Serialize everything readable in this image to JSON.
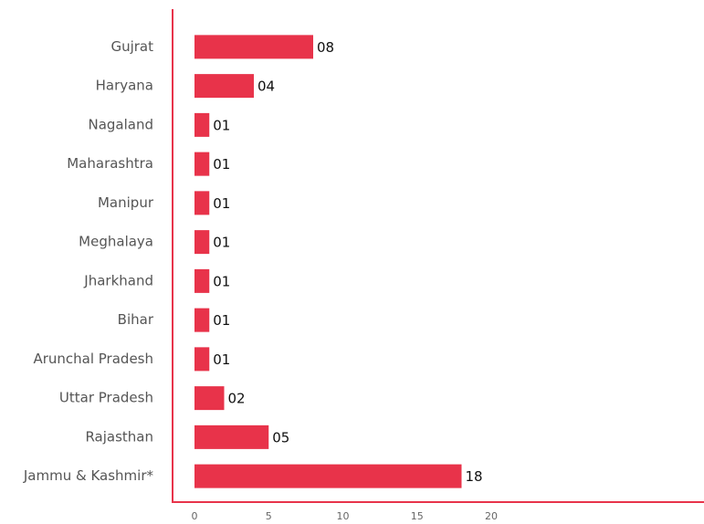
{
  "chart_data": {
    "type": "barh",
    "categories": [
      "Gujrat",
      "Haryana",
      "Nagaland",
      "Maharashtra",
      "Manipur",
      "Meghalaya",
      "Jharkhand",
      "Bihar",
      "Arunchal Pradesh",
      "Uttar Pradesh",
      "Rajasthan",
      "Jammu & Kashmir*"
    ],
    "values": [
      8,
      4,
      1,
      1,
      1,
      1,
      1,
      1,
      1,
      2,
      5,
      18
    ],
    "value_labels": [
      "08",
      "04",
      "01",
      "01",
      "01",
      "01",
      "01",
      "01",
      "01",
      "02",
      "05",
      "18"
    ],
    "color": "#e8334a",
    "xlim": [
      0,
      34
    ],
    "xticks": [
      0,
      5,
      10,
      15,
      20
    ]
  }
}
